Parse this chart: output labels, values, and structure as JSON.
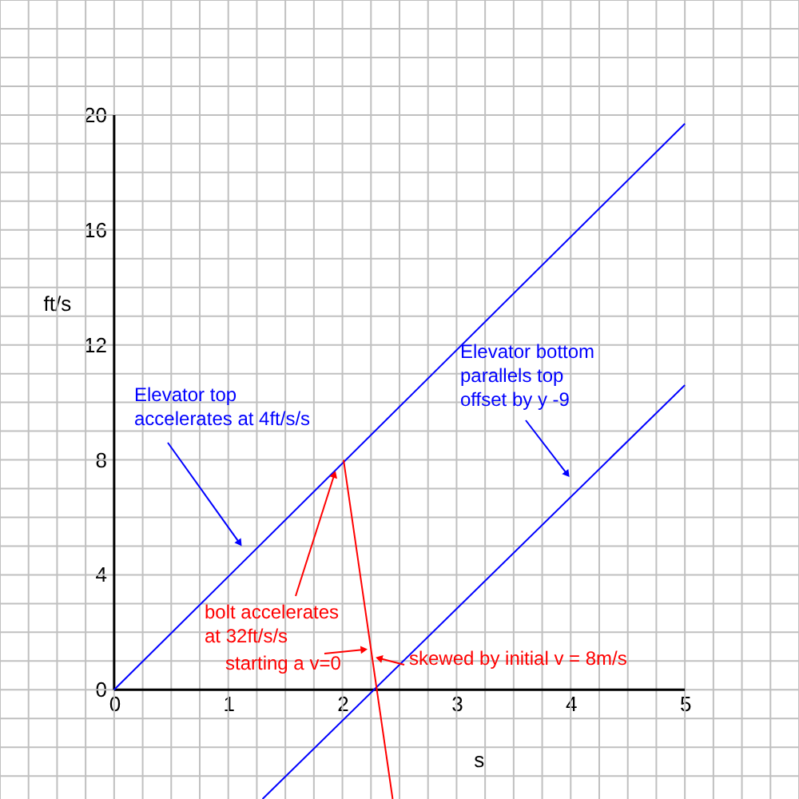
{
  "chart_data": {
    "type": "line",
    "xlabel": "s",
    "ylabel": "ft/s",
    "xlim": [
      -1,
      6
    ],
    "ylim": [
      -3.8,
      24
    ],
    "xticks": [
      {
        "value": -1,
        "label": null
      },
      {
        "value": -0.75,
        "label": null
      },
      {
        "value": -0.5,
        "label": null
      },
      {
        "value": -0.25,
        "label": null
      },
      0,
      {
        "value": 0.25,
        "label": null
      },
      {
        "value": 0.5,
        "label": null
      },
      {
        "value": 0.75,
        "label": null
      },
      1,
      {
        "value": 1.25,
        "label": null
      },
      {
        "value": 1.5,
        "label": null
      },
      {
        "value": 1.75,
        "label": null
      },
      2,
      {
        "value": 2.25,
        "label": null
      },
      {
        "value": 2.5,
        "label": null
      },
      {
        "value": 2.75,
        "label": null
      },
      3,
      {
        "value": 3.25,
        "label": null
      },
      {
        "value": 3.5,
        "label": null
      },
      {
        "value": 3.75,
        "label": null
      },
      4,
      {
        "value": 4.25,
        "label": null
      },
      {
        "value": 4.5,
        "label": null
      },
      {
        "value": 4.75,
        "label": null
      },
      5,
      {
        "value": 5.25,
        "label": null
      },
      {
        "value": 5.5,
        "label": null
      },
      {
        "value": 5.75,
        "label": null
      },
      {
        "value": 6,
        "label": null
      }
    ],
    "yticks": [
      {
        "value": -3,
        "label": null
      },
      {
        "value": -2,
        "label": null
      },
      {
        "value": -1,
        "label": null
      },
      0,
      {
        "value": 1,
        "label": null
      },
      {
        "value": 2,
        "label": null
      },
      {
        "value": 3,
        "label": null
      },
      4,
      {
        "value": 5,
        "label": null
      },
      {
        "value": 6,
        "label": null
      },
      {
        "value": 7,
        "label": null
      },
      8,
      {
        "value": 9,
        "label": null
      },
      {
        "value": 10,
        "label": null
      },
      {
        "value": 11,
        "label": null
      },
      12,
      {
        "value": 13,
        "label": null
      },
      {
        "value": 14,
        "label": null
      },
      {
        "value": 15,
        "label": null
      },
      16,
      {
        "value": 17,
        "label": null
      },
      {
        "value": 18,
        "label": null
      },
      {
        "value": 19,
        "label": null
      },
      20,
      {
        "value": 21,
        "label": null
      },
      {
        "value": 22,
        "label": null
      },
      {
        "value": 23,
        "label": null
      },
      {
        "value": 24,
        "label": null
      }
    ],
    "grid": true,
    "marker": "none",
    "line_style": "solid",
    "series": [
      {
        "color": "#0000ff",
        "x": [
          0,
          5
        ],
        "values": [
          0,
          19.7
        ]
      },
      {
        "color": "#0000ff",
        "x": [
          1.3,
          5
        ],
        "values": [
          -3.8,
          10.6
        ]
      },
      {
        "color": "#ff0000",
        "x": [
          2.01,
          2.44
        ],
        "values": [
          8,
          -3.8
        ]
      }
    ],
    "annotations": [
      {
        "text": "Elevator top\naccelerates at 4ft/s/s",
        "x": 1.1,
        "y": 5.1
      },
      {
        "text": "Elevator bottom\nparallels top\noffset by y -9",
        "x": 3.97,
        "y": 7.5
      },
      {
        "text": "bolt accelerates\nat 32ft/s/s",
        "x": 1.93,
        "y": 7.5
      },
      {
        "text": "starting a v=0",
        "x": 2.19,
        "y": 1.4
      },
      {
        "text": "skewed by initial v = 8m/s",
        "x": 2.32,
        "y": 1.1
      }
    ]
  }
}
